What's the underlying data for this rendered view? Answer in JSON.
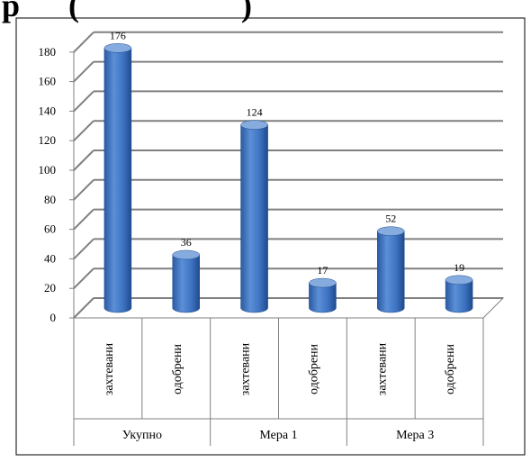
{
  "header_fragment": "р      (                    )",
  "chart_data": {
    "type": "bar",
    "style": "3d-cylinder",
    "groups": [
      "Укупно",
      "Мера 1",
      "Мера 3"
    ],
    "categories": [
      "захтевани",
      "одобрени",
      "захтевани",
      "одобрени",
      "захтевани",
      "одобрени"
    ],
    "values": [
      176,
      36,
      124,
      17,
      52,
      19
    ],
    "data_labels": [
      "176",
      "36",
      "124",
      "17",
      "52",
      "19"
    ],
    "y_ticks": [
      "0",
      "20",
      "40",
      "60",
      "80",
      "100",
      "120",
      "140",
      "160",
      "180"
    ],
    "ylim": [
      0,
      180
    ],
    "grid": true,
    "legend": "none",
    "colors": {
      "bar": "#3e73c2",
      "bar_dark": "#1f4a8c",
      "bar_light": "#86acdf",
      "grid": "#808080",
      "axis": "#808080",
      "text": "#000000"
    }
  }
}
